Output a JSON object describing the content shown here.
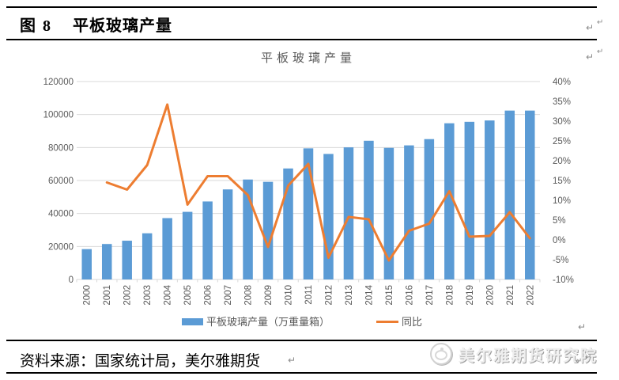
{
  "header": {
    "figure_label": "图 8",
    "title": "平板玻璃产量"
  },
  "marks": {
    "pilcrow": "↵"
  },
  "footer": {
    "source": "资料来源：国家统计局，美尔雅期货",
    "logo_text": "美尔雅期货研究院"
  },
  "colors": {
    "bar": "#5B9BD5",
    "line": "#ED7D31",
    "grid": "#D9D9D9",
    "axis_text": "#595959",
    "chart_title": "#595959"
  },
  "chart_data": {
    "type": "bar+line",
    "title": "平板玻璃产量",
    "grid": true,
    "legend_position": "bottom",
    "categories": [
      "2000",
      "2001",
      "2002",
      "2003",
      "2004",
      "2005",
      "2006",
      "2007",
      "2008",
      "2009",
      "2010",
      "2011",
      "2012",
      "2013",
      "2014",
      "2015",
      "2016",
      "2017",
      "2018",
      "2019",
      "2020",
      "2021",
      "2022"
    ],
    "left_axis": {
      "min": 0,
      "max": 120000,
      "step": 20000,
      "tick_labels": [
        "0",
        "20000",
        "40000",
        "60000",
        "80000",
        "100000",
        "120000"
      ]
    },
    "right_axis": {
      "min": -10,
      "max": 40,
      "step": 5,
      "tick_labels": [
        "-10%",
        "-5%",
        "0%",
        "5%",
        "10%",
        "15%",
        "20%",
        "25%",
        "30%",
        "35%",
        "40%"
      ]
    },
    "series": [
      {
        "name": "平板玻璃产量（万重量箱）",
        "type": "bar",
        "axis": "left",
        "unit": "万重量箱",
        "color": "#5B9BD5",
        "values": [
          18400,
          21500,
          23500,
          28000,
          37200,
          41000,
          47300,
          54600,
          60600,
          59200,
          67300,
          79500,
          76100,
          80100,
          84100,
          79800,
          81300,
          85100,
          94700,
          95600,
          96400,
          102400,
          102400
        ]
      },
      {
        "name": "同比",
        "type": "line",
        "axis": "right",
        "unit": "%",
        "color": "#ED7D31",
        "values": [
          null,
          14.5,
          12.7,
          18.9,
          34.2,
          8.9,
          16.1,
          16.1,
          11.3,
          -1.8,
          13.7,
          19.2,
          -4.5,
          5.8,
          5.2,
          -5.2,
          2.3,
          4.1,
          12.3,
          0.8,
          1.0,
          7.0,
          0.4
        ]
      }
    ]
  }
}
